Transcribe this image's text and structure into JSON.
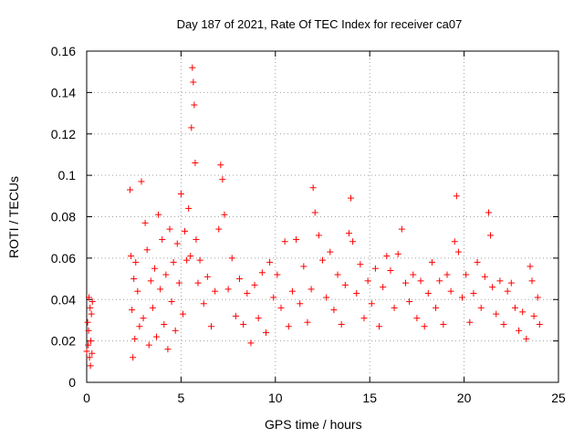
{
  "chart_data": {
    "type": "scatter",
    "title": "Day 187 of 2021, Rate Of TEC Index for receiver ca07",
    "xlabel": "GPS time / hours",
    "ylabel": "ROTI / TECUs",
    "xlim": [
      0,
      25
    ],
    "ylim": [
      0,
      0.16
    ],
    "xticks": [
      0,
      5,
      10,
      15,
      20,
      25
    ],
    "yticks": [
      0,
      0.02,
      0.04,
      0.06,
      0.08,
      0.1,
      0.12,
      0.14,
      0.16
    ],
    "xtick_labels": [
      "0",
      "5",
      "10",
      "15",
      "20",
      "25"
    ],
    "ytick_labels": [
      "0",
      "0.02",
      "0.04",
      "0.06",
      "0.08",
      "0.1",
      "0.12",
      "0.14",
      "0.16"
    ],
    "grid": true,
    "marker": "+",
    "color": "#ff0000",
    "series": [
      {
        "x": [
          0.0,
          0.05,
          0.08,
          0.1,
          0.12,
          0.15,
          0.18,
          0.2,
          0.22,
          0.25,
          0.28,
          0.3,
          2.3,
          2.35,
          2.4,
          2.45,
          2.5,
          2.55,
          2.6,
          2.7,
          2.8,
          2.9,
          3.0,
          3.1,
          3.2,
          3.3,
          3.4,
          3.5,
          3.6,
          3.7,
          3.8,
          3.9,
          4.0,
          4.1,
          4.2,
          4.3,
          4.4,
          4.5,
          4.6,
          4.7,
          4.8,
          4.9,
          5.0,
          5.1,
          5.2,
          5.3,
          5.4,
          5.5,
          5.55,
          5.6,
          5.65,
          5.7,
          5.75,
          5.8,
          5.9,
          6.0,
          6.2,
          6.4,
          6.6,
          6.8,
          7.0,
          7.1,
          7.2,
          7.3,
          7.5,
          7.7,
          7.9,
          8.1,
          8.3,
          8.5,
          8.7,
          8.9,
          9.1,
          9.3,
          9.5,
          9.7,
          9.9,
          10.1,
          10.3,
          10.5,
          10.7,
          10.9,
          11.1,
          11.3,
          11.5,
          11.7,
          11.9,
          12.0,
          12.1,
          12.3,
          12.5,
          12.7,
          12.9,
          13.1,
          13.3,
          13.5,
          13.7,
          13.9,
          14.0,
          14.1,
          14.3,
          14.5,
          14.7,
          14.9,
          15.1,
          15.3,
          15.5,
          15.7,
          15.9,
          16.1,
          16.3,
          16.5,
          16.7,
          16.9,
          17.1,
          17.3,
          17.5,
          17.7,
          17.9,
          18.1,
          18.3,
          18.5,
          18.7,
          18.9,
          19.1,
          19.3,
          19.5,
          19.6,
          19.7,
          19.9,
          20.1,
          20.3,
          20.5,
          20.7,
          20.9,
          21.1,
          21.3,
          21.4,
          21.5,
          21.7,
          21.9,
          22.1,
          22.3,
          22.5,
          22.7,
          22.9,
          23.1,
          23.3,
          23.5,
          23.6,
          23.7,
          23.9,
          24.0
        ],
        "y": [
          0.015,
          0.029,
          0.018,
          0.025,
          0.041,
          0.012,
          0.036,
          0.008,
          0.02,
          0.033,
          0.014,
          0.039,
          0.093,
          0.061,
          0.035,
          0.012,
          0.05,
          0.021,
          0.058,
          0.044,
          0.027,
          0.097,
          0.031,
          0.077,
          0.064,
          0.018,
          0.049,
          0.036,
          0.055,
          0.022,
          0.081,
          0.045,
          0.069,
          0.028,
          0.052,
          0.016,
          0.074,
          0.039,
          0.058,
          0.025,
          0.067,
          0.048,
          0.091,
          0.033,
          0.073,
          0.059,
          0.084,
          0.061,
          0.123,
          0.152,
          0.145,
          0.134,
          0.106,
          0.069,
          0.048,
          0.059,
          0.038,
          0.051,
          0.027,
          0.044,
          0.074,
          0.105,
          0.098,
          0.081,
          0.045,
          0.06,
          0.032,
          0.05,
          0.028,
          0.043,
          0.019,
          0.047,
          0.031,
          0.053,
          0.024,
          0.058,
          0.041,
          0.052,
          0.036,
          0.068,
          0.027,
          0.044,
          0.069,
          0.038,
          0.056,
          0.029,
          0.045,
          0.094,
          0.082,
          0.071,
          0.059,
          0.041,
          0.063,
          0.035,
          0.052,
          0.028,
          0.047,
          0.072,
          0.089,
          0.068,
          0.043,
          0.057,
          0.031,
          0.049,
          0.038,
          0.055,
          0.027,
          0.046,
          0.061,
          0.054,
          0.036,
          0.062,
          0.074,
          0.048,
          0.039,
          0.052,
          0.031,
          0.049,
          0.027,
          0.043,
          0.058,
          0.036,
          0.049,
          0.028,
          0.052,
          0.044,
          0.068,
          0.09,
          0.063,
          0.041,
          0.052,
          0.029,
          0.043,
          0.058,
          0.036,
          0.051,
          0.082,
          0.071,
          0.046,
          0.033,
          0.049,
          0.028,
          0.044,
          0.048,
          0.036,
          0.025,
          0.034,
          0.021,
          0.056,
          0.049,
          0.032,
          0.041,
          0.028
        ]
      }
    ]
  }
}
